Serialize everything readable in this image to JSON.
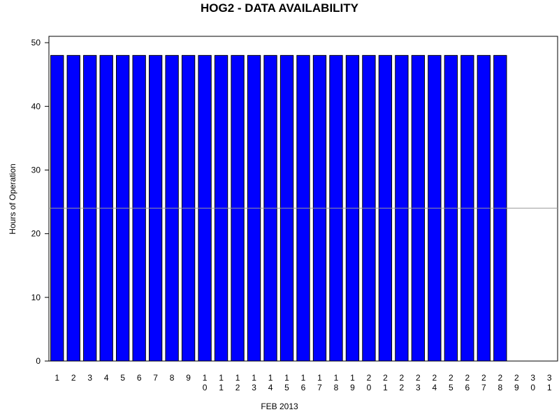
{
  "chart_data": {
    "type": "bar",
    "title": "HOG2 - DATA AVAILABILITY",
    "x_label": "FEB 2013",
    "y_label": "Hours of Operation",
    "categories": [
      "1",
      "2",
      "3",
      "4",
      "5",
      "6",
      "7",
      "8",
      "9",
      "10",
      "11",
      "12",
      "13",
      "14",
      "15",
      "16",
      "17",
      "18",
      "19",
      "20",
      "21",
      "22",
      "23",
      "24",
      "25",
      "26",
      "27",
      "28",
      "29",
      "30",
      "31"
    ],
    "values": [
      48,
      48,
      48,
      48,
      48,
      48,
      48,
      48,
      48,
      48,
      48,
      48,
      48,
      48,
      48,
      48,
      48,
      48,
      48,
      48,
      48,
      48,
      48,
      48,
      48,
      48,
      48,
      48,
      null,
      null,
      null
    ],
    "color": "#0000ff",
    "reference_line": 24,
    "reference_color": "#999999",
    "ylim": [
      0,
      51
    ],
    "yticks": [
      0,
      10,
      20,
      30,
      40,
      50
    ]
  }
}
